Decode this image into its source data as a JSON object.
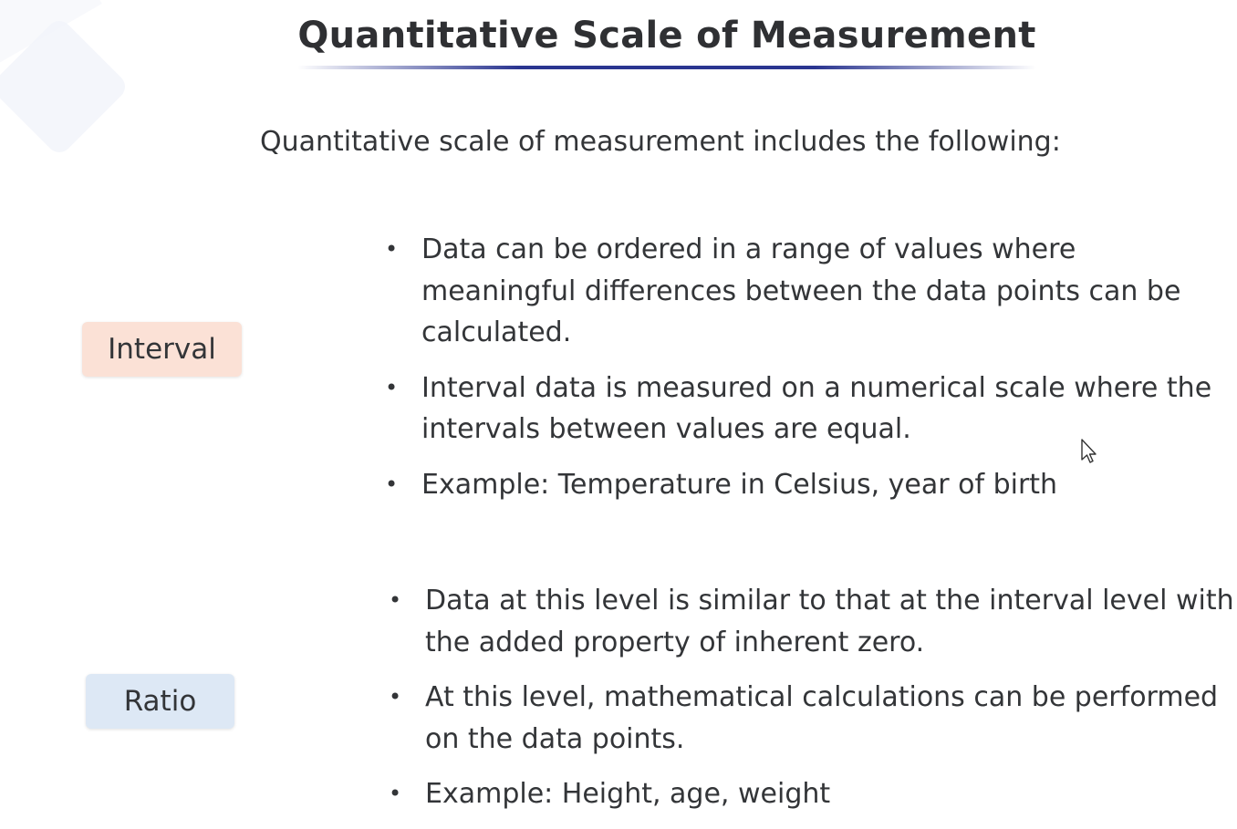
{
  "slide": {
    "title": "Quantitative Scale of Measurement",
    "intro": "Quantitative scale of measurement includes the following:",
    "sections": [
      {
        "label": "Interval",
        "color": "#fbe1d6",
        "bullets": [
          "Data can be ordered in a range of values where meaningful differences between the data points can be calculated.",
          "Interval data is measured on a numerical scale where the intervals between values are equal.",
          "Example: Temperature in Celsius, year of birth"
        ]
      },
      {
        "label": "Ratio",
        "color": "#dde8f5",
        "bullets": [
          "Data at this level is similar to that at the interval level with the added property of inherent zero.",
          "At this level, mathematical calculations can be performed on the data points.",
          "Example: Height, age, weight"
        ]
      }
    ],
    "accent_color": "#2a3590",
    "bullet_glyph": "•",
    "cursor_icon": "mouse-pointer-icon"
  }
}
